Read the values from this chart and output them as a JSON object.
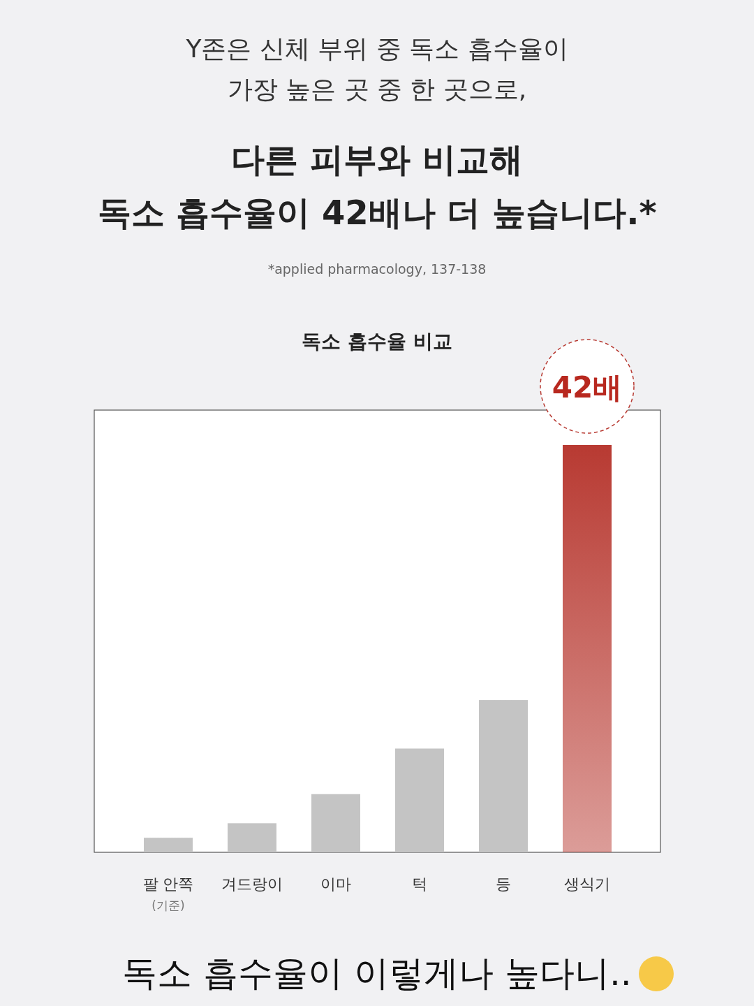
{
  "chart_data": {
    "type": "bar",
    "title": "독소 흡수율 비교",
    "categories": [
      "팔 안쪽\n(기준)",
      "겨드랑이",
      "이마",
      "턱",
      "등",
      "생식기"
    ],
    "series": [
      {
        "values": [
          1.5,
          3,
          6,
          10.7,
          15.7,
          42
        ],
        "colors": [
          "#c4c4c4",
          "#c4c4c4",
          "#c4c4c4",
          "#c4c4c4",
          "#c4c4c4",
          "#b83a32"
        ],
        "value_labels": [
          null,
          null,
          null,
          null,
          null,
          "42배"
        ]
      }
    ],
    "annotations": [
      "Y존은 신체 부위 중 독소 흡수율이\n가장 높은 곳 중 한 곳으로,",
      "다른 피부와 비교해\n독소 흡수율이 42배나 더 높습니다.*",
      "*applied pharmacology, 137-138",
      "독소  흡수율이  이렇게나  높다니.."
    ]
  }
}
